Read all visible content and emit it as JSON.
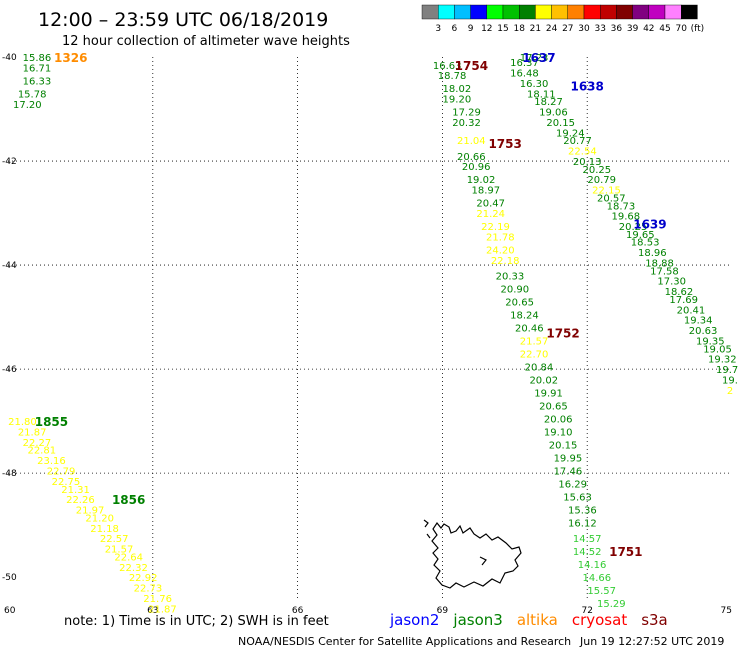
{
  "header": {
    "title": "12:00 – 23:59 UTC 06/18/2019",
    "subtitle": "12 hour collection of altimeter wave heights"
  },
  "scale": {
    "colors": [
      "#808080",
      "#00ffff",
      "#00bfff",
      "#0000ff",
      "#00ff00",
      "#00c000",
      "#008000",
      "#ffff00",
      "#ffc000",
      "#ff8000",
      "#ff0000",
      "#c00000",
      "#800000",
      "#800080",
      "#c000c0",
      "#ff80ff",
      "#000000"
    ],
    "labels": [
      "3",
      "6",
      "9",
      "12",
      "15",
      "18",
      "21",
      "24",
      "27",
      "30",
      "33",
      "36",
      "39",
      "42",
      "45",
      "70",
      "(ft)"
    ]
  },
  "axes": {
    "lon_ticks": [
      "60",
      "63",
      "66",
      "69",
      "72",
      "75"
    ],
    "lat_ticks": [
      "-40",
      "-42",
      "-44",
      "-46",
      "-48",
      "-50"
    ]
  },
  "satellites": [
    {
      "name": "jason2",
      "color": "#0000ff"
    },
    {
      "name": "jason3",
      "color": "#008000"
    },
    {
      "name": "altika",
      "color": "#ff8c00"
    },
    {
      "name": "cryosat",
      "color": "#ff0000"
    },
    {
      "name": "s3a",
      "color": "#800000"
    }
  ],
  "times": [
    {
      "text": "1326",
      "color": "#ff8c00",
      "lon": 61.3,
      "lat": -40.0
    },
    {
      "text": "1637",
      "color": "#0000cc",
      "lon": 71.0,
      "lat": -40.0
    },
    {
      "text": "1754",
      "color": "#800000",
      "lon": 69.6,
      "lat": -40.15
    },
    {
      "text": "1638",
      "color": "#0000cc",
      "lon": 72.0,
      "lat": -40.55
    },
    {
      "text": "1753",
      "color": "#800000",
      "lon": 70.3,
      "lat": -41.65
    },
    {
      "text": "1639",
      "color": "#0000cc",
      "lon": 73.3,
      "lat": -43.2
    },
    {
      "text": "1752",
      "color": "#800000",
      "lon": 71.5,
      "lat": -45.3
    },
    {
      "text": "1855",
      "color": "#008000",
      "lon": 60.9,
      "lat": -47.0
    },
    {
      "text": "1856",
      "color": "#008000",
      "lon": 62.5,
      "lat": -48.5
    },
    {
      "text": "1751",
      "color": "#800000",
      "lon": 72.8,
      "lat": -49.5
    }
  ],
  "tracks": [
    {
      "color": "#008000",
      "points": [
        [
          "15.86",
          60.6,
          -40.0
        ],
        [
          "16.71",
          60.6,
          -40.2
        ],
        [
          "16.33",
          60.6,
          -40.45
        ],
        [
          "15.78",
          60.5,
          -40.7
        ],
        [
          "17.20",
          60.4,
          -40.9
        ]
      ]
    },
    {
      "color": "#008000",
      "points": [
        [
          "17.23",
          70.9,
          -40.0
        ],
        [
          "16.37",
          70.7,
          -40.1
        ],
        [
          "16.48",
          70.7,
          -40.3
        ],
        [
          "16.30",
          70.9,
          -40.5
        ],
        [
          "18.11",
          71.05,
          -40.7
        ],
        [
          "18.27",
          71.2,
          -40.85
        ],
        [
          "19.06",
          71.3,
          -41.05
        ],
        [
          "20.15",
          71.45,
          -41.25
        ],
        [
          "19.24",
          71.65,
          -41.45
        ],
        [
          "20.77",
          71.8,
          -41.6
        ]
      ]
    },
    {
      "color": "#ffff00",
      "points": [
        [
          "22.54",
          71.9,
          -41.8
        ]
      ]
    },
    {
      "color": "#008000",
      "points": [
        [
          "20.13",
          72.0,
          -42.0
        ],
        [
          "20.25",
          72.2,
          -42.15
        ],
        [
          "20.79",
          72.3,
          -42.35
        ]
      ]
    },
    {
      "color": "#ffff00",
      "points": [
        [
          "22.15",
          72.4,
          -42.55
        ]
      ]
    },
    {
      "color": "#008000",
      "points": [
        [
          "20.57",
          72.5,
          -42.7
        ],
        [
          "18.73",
          72.7,
          -42.85
        ],
        [
          "19.68",
          72.8,
          -43.05
        ],
        [
          "20.25",
          72.95,
          -43.25
        ],
        [
          "19.65",
          73.1,
          -43.4
        ],
        [
          "18.53",
          73.2,
          -43.55
        ],
        [
          "18.96",
          73.35,
          -43.75
        ],
        [
          "18.88",
          73.5,
          -43.95
        ],
        [
          "17.58",
          73.6,
          -44.1
        ],
        [
          "17.30",
          73.75,
          -44.3
        ],
        [
          "18.62",
          73.9,
          -44.5
        ],
        [
          "17.69",
          74.0,
          -44.65
        ],
        [
          "20.41",
          74.15,
          -44.85
        ],
        [
          "19.34",
          74.3,
          -45.05
        ],
        [
          "20.63",
          74.4,
          -45.25
        ],
        [
          "19.35",
          74.55,
          -45.45
        ],
        [
          "19.05",
          74.7,
          -45.6
        ],
        [
          "19.32",
          74.8,
          -45.8
        ],
        [
          "19.7",
          74.9,
          -46.0
        ],
        [
          "19.",
          75.0,
          -46.2
        ]
      ]
    },
    {
      "color": "#ffff00",
      "points": [
        [
          "2",
          75.0,
          -46.4
        ]
      ]
    },
    {
      "color": "#008000",
      "points": [
        [
          "16.63",
          69.1,
          -40.15
        ],
        [
          "18.78",
          69.2,
          -40.35
        ],
        [
          "18.02",
          69.3,
          -40.6
        ],
        [
          "19.20",
          69.3,
          -40.8
        ],
        [
          "17.29",
          69.5,
          -41.05
        ],
        [
          "20.32",
          69.5,
          -41.25
        ]
      ]
    },
    {
      "color": "#ffff00",
      "points": [
        [
          "21.04",
          69.6,
          -41.6
        ]
      ]
    },
    {
      "color": "#008000",
      "points": [
        [
          "20.66",
          69.6,
          -41.9
        ],
        [
          "20.96",
          69.7,
          -42.1
        ],
        [
          "19.02",
          69.8,
          -42.35
        ],
        [
          "18.97",
          69.9,
          -42.55
        ],
        [
          "20.47",
          70.0,
          -42.8
        ]
      ]
    },
    {
      "color": "#ffff00",
      "points": [
        [
          "21.24",
          70.0,
          -43.0
        ],
        [
          "22.19",
          70.1,
          -43.25
        ],
        [
          "21.78",
          70.2,
          -43.45
        ],
        [
          "24.20",
          70.2,
          -43.7
        ],
        [
          "22.18",
          70.3,
          -43.9
        ]
      ]
    },
    {
      "color": "#008000",
      "points": [
        [
          "20.33",
          70.4,
          -44.2
        ],
        [
          "20.90",
          70.5,
          -44.45
        ],
        [
          "20.65",
          70.6,
          -44.7
        ],
        [
          "18.24",
          70.7,
          -44.95
        ],
        [
          "20.46",
          70.8,
          -45.2
        ]
      ]
    },
    {
      "color": "#ffff00",
      "points": [
        [
          "21.57",
          70.9,
          -45.45
        ],
        [
          "22.70",
          70.9,
          -45.7
        ]
      ]
    },
    {
      "color": "#008000",
      "points": [
        [
          "20.84",
          71.0,
          -45.95
        ],
        [
          "20.02",
          71.1,
          -46.2
        ],
        [
          "19.91",
          71.2,
          -46.45
        ],
        [
          "20.65",
          71.3,
          -46.7
        ],
        [
          "20.06",
          71.4,
          -46.95
        ],
        [
          "19.10",
          71.4,
          -47.2
        ],
        [
          "20.15",
          71.5,
          -47.45
        ],
        [
          "19.95",
          71.6,
          -47.7
        ],
        [
          "17.46",
          71.6,
          -47.95
        ],
        [
          "16.29",
          71.7,
          -48.2
        ],
        [
          "15.63",
          71.8,
          -48.45
        ],
        [
          "15.36",
          71.9,
          -48.7
        ],
        [
          "16.12",
          71.9,
          -48.95
        ]
      ]
    },
    {
      "color": "#33cc33",
      "points": [
        [
          "14.57",
          72.0,
          -49.25
        ],
        [
          "14.52",
          72.0,
          -49.5
        ],
        [
          "14.16",
          72.1,
          -49.75
        ],
        [
          "14.66",
          72.2,
          -50.0
        ],
        [
          "15.57",
          72.3,
          -50.25
        ],
        [
          "15.29",
          72.5,
          -50.5
        ]
      ]
    },
    {
      "color": "#ffff00",
      "points": [
        [
          "21.80",
          60.3,
          -47.0
        ],
        [
          "21.87",
          60.5,
          -47.2
        ],
        [
          "22.27",
          60.6,
          -47.4
        ],
        [
          "22.81",
          60.7,
          -47.55
        ],
        [
          "23.16",
          60.9,
          -47.75
        ],
        [
          "22.79",
          61.1,
          -47.95
        ],
        [
          "22.75",
          61.2,
          -48.15
        ],
        [
          "21.31",
          61.4,
          -48.3
        ],
        [
          "22.26",
          61.5,
          -48.5
        ],
        [
          "21.97",
          61.7,
          -48.7
        ],
        [
          "21.20",
          61.9,
          -48.85
        ],
        [
          "21.18",
          62.0,
          -49.05
        ],
        [
          "22.57",
          62.2,
          -49.25
        ],
        [
          "21.57",
          62.3,
          -49.45
        ],
        [
          "22.64",
          62.5,
          -49.6
        ],
        [
          "22.32",
          62.6,
          -49.8
        ],
        [
          "22.92",
          62.8,
          -50.0
        ],
        [
          "22.73",
          62.9,
          -50.2
        ],
        [
          "21.76",
          63.1,
          -50.4
        ],
        [
          "21.87",
          63.2,
          -50.6
        ]
      ]
    }
  ],
  "note": "note: 1) Time is in UTC; 2) SWH is in feet",
  "footer": {
    "credit": "NOAA/NESDIS Center for Satellite Applications and Research",
    "timestamp": "Jun 19 12:27:52 UTC 2019"
  }
}
